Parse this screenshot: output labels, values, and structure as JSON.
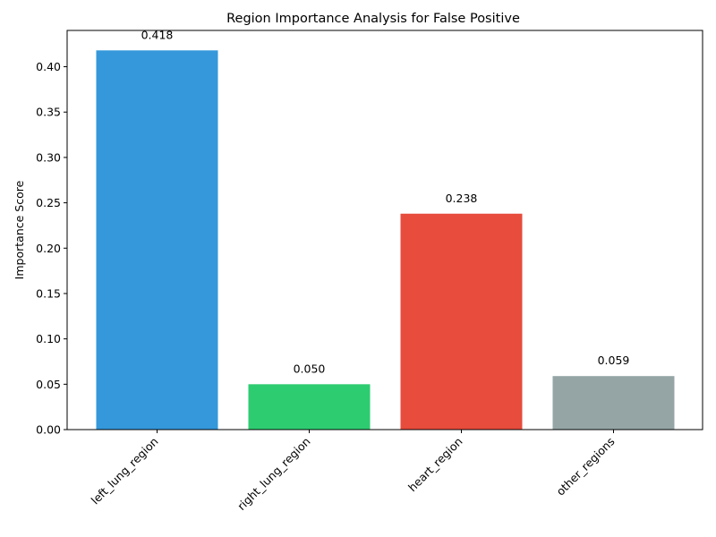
{
  "chart_data": {
    "type": "bar",
    "title": "Region Importance Analysis for False Positive",
    "xlabel": "",
    "ylabel": "Importance Score",
    "categories": [
      "left_lung_region",
      "right_lung_region",
      "heart_region",
      "other_regions"
    ],
    "values": [
      0.418,
      0.05,
      0.238,
      0.059
    ],
    "value_labels": [
      "0.418",
      "0.050",
      "0.238",
      "0.059"
    ],
    "colors": [
      "#3498db",
      "#2ecc71",
      "#e74c3c",
      "#95a5a6"
    ],
    "ylim": [
      0,
      0.44
    ],
    "yticks": [
      "0.00",
      "0.05",
      "0.10",
      "0.15",
      "0.20",
      "0.25",
      "0.30",
      "0.35",
      "0.40"
    ],
    "grid": false,
    "legend": "none"
  }
}
